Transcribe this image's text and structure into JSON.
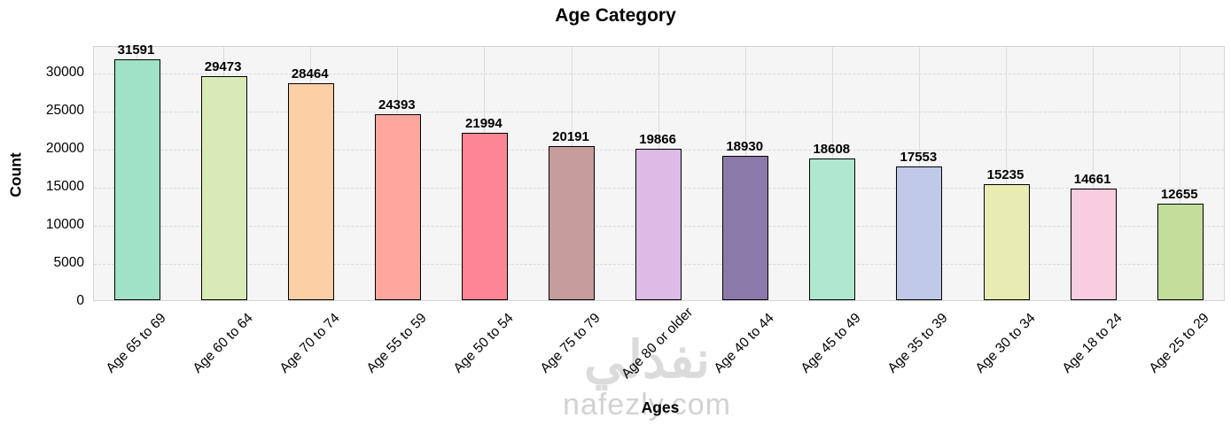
{
  "header": {
    "title": "Age Category"
  },
  "chart_data": {
    "type": "bar",
    "title": "Age Category",
    "xlabel": "Ages",
    "ylabel": "Count",
    "categories": [
      "Age 65 to 69",
      "Age 60 to 64",
      "Age 70 to 74",
      "Age 55 to 59",
      "Age 50 to 54",
      "Age 75 to 79",
      "Age 80 or older",
      "Age 40 to 44",
      "Age 45 to 49",
      "Age 35 to 39",
      "Age 30 to 34",
      "Age 18 to 24",
      "Age 25 to 29"
    ],
    "values": [
      31591,
      29473,
      28464,
      24393,
      21994,
      20191,
      19866,
      18930,
      18608,
      17553,
      15235,
      14661,
      12655
    ],
    "bar_colors": [
      "#9fe2c6",
      "#d8eab6",
      "#fccfa5",
      "#ffa79f",
      "#fc8691",
      "#c69c9d",
      "#ddbbe7",
      "#8b7aa9",
      "#b0e7cf",
      "#c0c9e8",
      "#e9ecb2",
      "#f9cce0",
      "#c3de9b"
    ],
    "bar_edge_color": "#000000",
    "value_labels_shown": true,
    "ylim": [
      0,
      33500
    ],
    "yticks": [
      0,
      5000,
      10000,
      15000,
      20000,
      25000,
      30000
    ],
    "grid": "horizontal dashed lines at y ticks, vertical solid lines at bar centers",
    "legend": "none"
  },
  "watermark": {
    "logo_text": "نفذلي",
    "site_text": "nafezly.com"
  },
  "colors": {
    "plot_bg": "#f5f5f6",
    "plot_border": "#d4d4d4",
    "grid": "#dcdcdc",
    "text": "#000000",
    "watermark": "#dbdbdb"
  }
}
